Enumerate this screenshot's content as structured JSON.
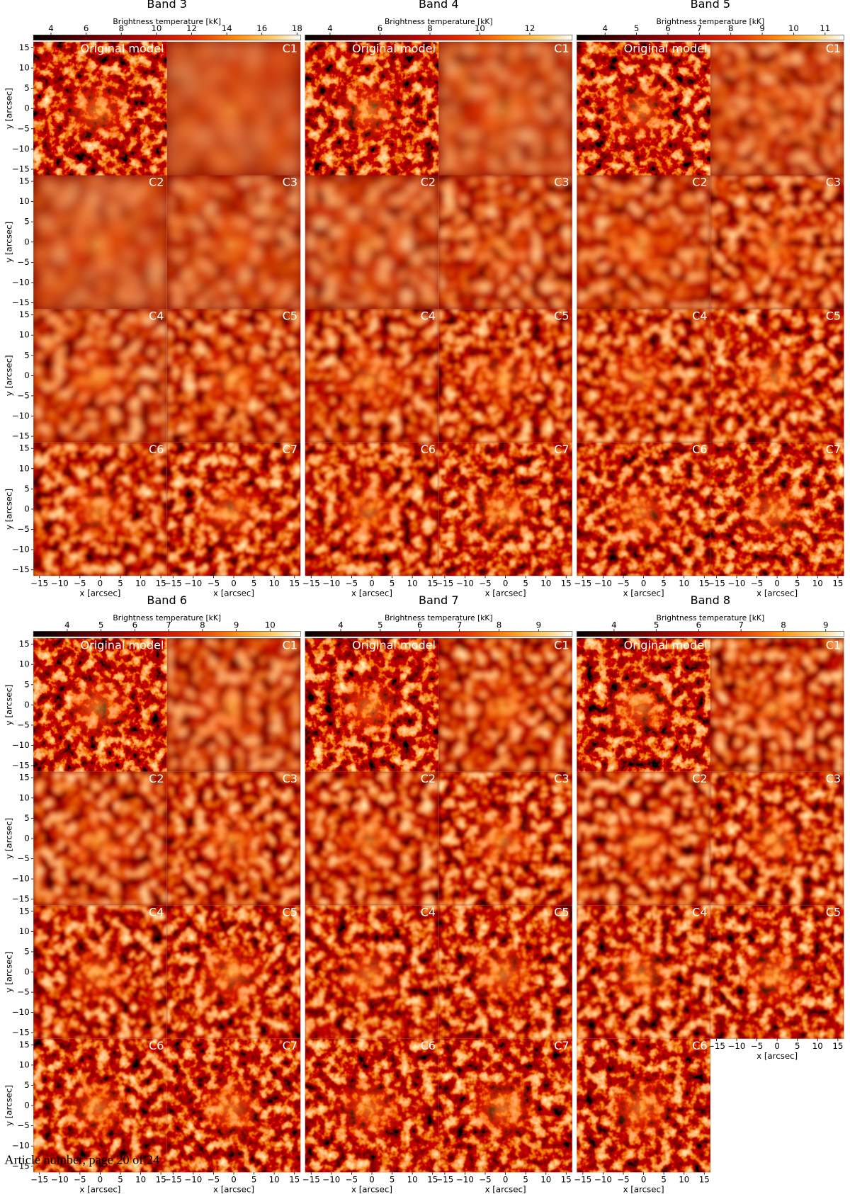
{
  "axes": {
    "xlabel": "x [arcsec]",
    "ylabel": "y [arcsec]",
    "lim": [
      -16.5,
      16.5
    ],
    "ticks": [
      {
        "value": -15,
        "label": "−15"
      },
      {
        "value": -10,
        "label": "−10"
      },
      {
        "value": -5,
        "label": "−5"
      },
      0,
      5,
      10,
      15
    ]
  },
  "bands": [
    {
      "title": "Band 3",
      "colorbar": {
        "label": "Brightness temperature [kK]",
        "lim": [
          3,
          18.2
        ],
        "ticks": [
          4,
          6,
          8,
          10,
          12,
          14,
          16,
          18
        ]
      },
      "panels": [
        "Original model",
        "C1",
        "C2",
        "C3",
        "C4",
        "C5",
        "C6",
        "C7"
      ]
    },
    {
      "title": "Band 4",
      "colorbar": {
        "label": "Brightness temperature [kK]",
        "lim": [
          3,
          13.7
        ],
        "ticks": [
          4,
          6,
          8,
          10,
          12
        ]
      },
      "panels": [
        "Original model",
        "C1",
        "C2",
        "C3",
        "C4",
        "C5",
        "C6",
        "C7"
      ]
    },
    {
      "title": "Band 5",
      "colorbar": {
        "label": "Brightness temperature [kK]",
        "lim": [
          3.1,
          11.6
        ],
        "ticks": [
          4,
          5,
          6,
          7,
          8,
          9,
          10,
          11
        ]
      },
      "panels": [
        "Original model",
        "C1",
        "C2",
        "C3",
        "C4",
        "C5",
        "C6",
        "C7"
      ]
    },
    {
      "title": "Band 6",
      "colorbar": {
        "label": "Brightness temperature [kK]",
        "lim": [
          3,
          10.9
        ],
        "ticks": [
          4,
          5,
          6,
          7,
          8,
          9,
          10
        ]
      },
      "panels": [
        "Original model",
        "C1",
        "C2",
        "C3",
        "C4",
        "C5",
        "C6",
        "C7"
      ]
    },
    {
      "title": "Band 7",
      "colorbar": {
        "label": "Brightness temperature [kK]",
        "lim": [
          3.1,
          9.85
        ],
        "ticks": [
          4,
          5,
          6,
          7,
          8,
          9
        ]
      },
      "panels": [
        "Original model",
        "C1",
        "C2",
        "C3",
        "C4",
        "C5",
        "C6",
        "C7"
      ]
    },
    {
      "title": "Band 8",
      "colorbar": {
        "label": "Brightness temperature [kK]",
        "lim": [
          3.12,
          9.43
        ],
        "ticks": [
          4,
          5,
          6,
          7,
          8,
          9
        ]
      },
      "panels": [
        "Original model",
        "C1",
        "C2",
        "C3",
        "C4",
        "C5",
        "C6"
      ]
    }
  ],
  "footer": "Article number, page 20 of 24"
}
